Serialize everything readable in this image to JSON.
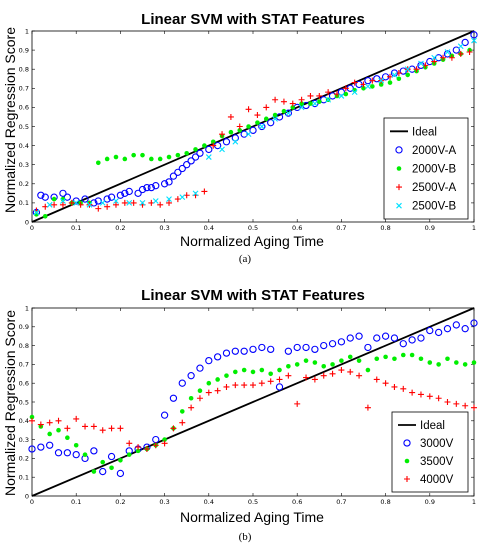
{
  "chart_data": [
    {
      "type": "scatter",
      "title": "Linear SVM with STAT Features",
      "xlabel": "Normalized Aging Time",
      "ylabel": "Normalized Regression Score",
      "caption": "(a)",
      "xlim": [
        0,
        1
      ],
      "ylim": [
        0,
        1
      ],
      "xticks": [
        "0",
        "0.1",
        "0.2",
        "0.3",
        "0.4",
        "0.5",
        "0.6",
        "0.7",
        "0.8",
        "0.9",
        "1"
      ],
      "yticks": [
        "0",
        "0.1",
        "0.2",
        "0.3",
        "0.4",
        "0.5",
        "0.6",
        "0.7",
        "0.8",
        "0.9",
        "1"
      ],
      "legend_position": "bottom-right",
      "ideal": {
        "name": "Ideal",
        "x": [
          0,
          1
        ],
        "y": [
          0,
          1
        ],
        "color": "#000000"
      },
      "series": [
        {
          "name": "2000V-A",
          "marker": "circle",
          "color": "#0000ff",
          "x": [
            0.01,
            0.02,
            0.03,
            0.05,
            0.07,
            0.08,
            0.1,
            0.12,
            0.14,
            0.15,
            0.17,
            0.18,
            0.2,
            0.21,
            0.22,
            0.24,
            0.25,
            0.26,
            0.27,
            0.28,
            0.3,
            0.31,
            0.32,
            0.33,
            0.34,
            0.35,
            0.36,
            0.37,
            0.38,
            0.4,
            0.42,
            0.44,
            0.46,
            0.48,
            0.5,
            0.52,
            0.54,
            0.56,
            0.58,
            0.6,
            0.62,
            0.64,
            0.66,
            0.68,
            0.7,
            0.72,
            0.74,
            0.76,
            0.78,
            0.8,
            0.82,
            0.84,
            0.86,
            0.88,
            0.9,
            0.92,
            0.94,
            0.96,
            0.98,
            1.0
          ],
          "y": [
            0.05,
            0.14,
            0.13,
            0.13,
            0.15,
            0.13,
            0.11,
            0.12,
            0.1,
            0.11,
            0.12,
            0.13,
            0.14,
            0.15,
            0.16,
            0.15,
            0.17,
            0.18,
            0.18,
            0.19,
            0.2,
            0.21,
            0.24,
            0.26,
            0.28,
            0.3,
            0.32,
            0.34,
            0.36,
            0.38,
            0.4,
            0.42,
            0.44,
            0.46,
            0.48,
            0.5,
            0.52,
            0.55,
            0.57,
            0.6,
            0.61,
            0.62,
            0.64,
            0.66,
            0.68,
            0.7,
            0.72,
            0.74,
            0.75,
            0.76,
            0.78,
            0.79,
            0.8,
            0.82,
            0.84,
            0.86,
            0.88,
            0.9,
            0.94,
            0.98
          ]
        },
        {
          "name": "2000V-B",
          "marker": "dot",
          "color": "#00ee00",
          "x": [
            0.01,
            0.03,
            0.05,
            0.07,
            0.09,
            0.11,
            0.13,
            0.15,
            0.17,
            0.19,
            0.21,
            0.23,
            0.25,
            0.27,
            0.29,
            0.31,
            0.33,
            0.35,
            0.37,
            0.39,
            0.41,
            0.43,
            0.45,
            0.47,
            0.49,
            0.51,
            0.53,
            0.55,
            0.57,
            0.59,
            0.61,
            0.63,
            0.65,
            0.67,
            0.69,
            0.71,
            0.73,
            0.75,
            0.77,
            0.79,
            0.81,
            0.83,
            0.85,
            0.87,
            0.89,
            0.91,
            0.93,
            0.95,
            0.97,
            0.99
          ],
          "y": [
            0.04,
            0.03,
            0.12,
            0.12,
            0.1,
            0.1,
            0.1,
            0.31,
            0.33,
            0.34,
            0.33,
            0.35,
            0.35,
            0.33,
            0.33,
            0.34,
            0.35,
            0.36,
            0.38,
            0.4,
            0.42,
            0.45,
            0.47,
            0.48,
            0.5,
            0.52,
            0.54,
            0.56,
            0.58,
            0.6,
            0.62,
            0.62,
            0.63,
            0.64,
            0.66,
            0.67,
            0.69,
            0.7,
            0.71,
            0.72,
            0.73,
            0.75,
            0.77,
            0.79,
            0.81,
            0.83,
            0.85,
            0.87,
            0.88,
            0.9
          ]
        },
        {
          "name": "2500V-A",
          "marker": "plus",
          "color": "#ff0000",
          "x": [
            0.01,
            0.03,
            0.05,
            0.07,
            0.09,
            0.11,
            0.13,
            0.15,
            0.17,
            0.19,
            0.21,
            0.23,
            0.25,
            0.27,
            0.29,
            0.31,
            0.33,
            0.35,
            0.37,
            0.39,
            0.41,
            0.43,
            0.45,
            0.47,
            0.49,
            0.51,
            0.53,
            0.55,
            0.57,
            0.59,
            0.61,
            0.63,
            0.65,
            0.67,
            0.69,
            0.71,
            0.73,
            0.75,
            0.77,
            0.79,
            0.81,
            0.83,
            0.85,
            0.87,
            0.89,
            0.91,
            0.93,
            0.95,
            0.97,
            0.99
          ],
          "y": [
            0.06,
            0.08,
            0.09,
            0.09,
            0.1,
            0.09,
            0.09,
            0.07,
            0.08,
            0.09,
            0.1,
            0.1,
            0.09,
            0.1,
            0.09,
            0.1,
            0.12,
            0.14,
            0.14,
            0.16,
            0.4,
            0.46,
            0.55,
            0.5,
            0.59,
            0.56,
            0.6,
            0.64,
            0.63,
            0.62,
            0.64,
            0.66,
            0.66,
            0.68,
            0.67,
            0.7,
            0.73,
            0.72,
            0.74,
            0.74,
            0.76,
            0.78,
            0.8,
            0.8,
            0.82,
            0.84,
            0.86,
            0.86,
            0.88,
            0.89
          ]
        },
        {
          "name": "2500V-B",
          "marker": "cross",
          "color": "#00e0ff",
          "x": [
            0.01,
            0.04,
            0.07,
            0.1,
            0.13,
            0.16,
            0.19,
            0.22,
            0.25,
            0.28,
            0.31,
            0.34,
            0.37,
            0.4,
            0.43,
            0.46,
            0.49,
            0.52,
            0.55,
            0.58,
            0.61,
            0.64,
            0.67,
            0.7,
            0.73,
            0.76,
            0.79,
            0.82,
            0.85,
            0.88,
            0.91,
            0.94,
            0.97,
            1.0
          ],
          "y": [
            0.05,
            0.09,
            0.11,
            0.1,
            0.09,
            0.1,
            0.11,
            0.1,
            0.1,
            0.11,
            0.12,
            0.13,
            0.15,
            0.34,
            0.38,
            0.42,
            0.46,
            0.5,
            0.54,
            0.57,
            0.6,
            0.62,
            0.64,
            0.66,
            0.68,
            0.71,
            0.74,
            0.77,
            0.8,
            0.83,
            0.86,
            0.89,
            0.92,
            0.95
          ]
        }
      ]
    },
    {
      "type": "scatter",
      "title": "Linear SVM with STAT Features",
      "xlabel": "Normalized Aging Time",
      "ylabel": "Normalized Regression Score",
      "caption": "(b)",
      "xlim": [
        0,
        1
      ],
      "ylim": [
        0,
        1
      ],
      "xticks": [
        "0",
        "0.1",
        "0.2",
        "0.3",
        "0.4",
        "0.5",
        "0.6",
        "0.7",
        "0.8",
        "0.9",
        "1"
      ],
      "yticks": [
        "0",
        "0.1",
        "0.2",
        "0.3",
        "0.4",
        "0.5",
        "0.6",
        "0.7",
        "0.8",
        "0.9",
        "1"
      ],
      "legend_position": "bottom-right",
      "ideal": {
        "name": "Ideal",
        "x": [
          0,
          1
        ],
        "y": [
          0,
          1
        ],
        "color": "#000000"
      },
      "series": [
        {
          "name": "3000V",
          "marker": "circle",
          "color": "#0000ff",
          "x": [
            0.0,
            0.02,
            0.04,
            0.06,
            0.08,
            0.1,
            0.12,
            0.14,
            0.16,
            0.18,
            0.2,
            0.22,
            0.24,
            0.26,
            0.28,
            0.3,
            0.32,
            0.34,
            0.36,
            0.38,
            0.4,
            0.42,
            0.44,
            0.46,
            0.48,
            0.5,
            0.52,
            0.54,
            0.56,
            0.58,
            0.6,
            0.62,
            0.64,
            0.66,
            0.68,
            0.7,
            0.72,
            0.74,
            0.76,
            0.78,
            0.8,
            0.82,
            0.84,
            0.86,
            0.88,
            0.9,
            0.92,
            0.94,
            0.96,
            0.98,
            1.0
          ],
          "y": [
            0.25,
            0.26,
            0.27,
            0.23,
            0.23,
            0.22,
            0.2,
            0.24,
            0.13,
            0.21,
            0.12,
            0.24,
            0.25,
            0.26,
            0.3,
            0.43,
            0.52,
            0.6,
            0.64,
            0.68,
            0.72,
            0.74,
            0.76,
            0.77,
            0.77,
            0.78,
            0.79,
            0.78,
            0.58,
            0.77,
            0.79,
            0.79,
            0.78,
            0.8,
            0.81,
            0.82,
            0.84,
            0.85,
            0.79,
            0.84,
            0.85,
            0.84,
            0.81,
            0.83,
            0.84,
            0.88,
            0.87,
            0.89,
            0.91,
            0.89,
            0.92
          ]
        },
        {
          "name": "3500V",
          "marker": "dot",
          "color": "#00ee00",
          "x": [
            0.0,
            0.02,
            0.04,
            0.06,
            0.08,
            0.1,
            0.12,
            0.14,
            0.16,
            0.18,
            0.2,
            0.22,
            0.24,
            0.26,
            0.28,
            0.3,
            0.32,
            0.34,
            0.36,
            0.38,
            0.4,
            0.42,
            0.44,
            0.46,
            0.48,
            0.5,
            0.52,
            0.54,
            0.56,
            0.58,
            0.6,
            0.62,
            0.64,
            0.66,
            0.68,
            0.7,
            0.72,
            0.74,
            0.76,
            0.78,
            0.8,
            0.82,
            0.84,
            0.86,
            0.88,
            0.9,
            0.92,
            0.94,
            0.96,
            0.98,
            1.0
          ],
          "y": [
            0.42,
            0.37,
            0.33,
            0.35,
            0.31,
            0.27,
            0.22,
            0.13,
            0.18,
            0.15,
            0.19,
            0.22,
            0.24,
            0.25,
            0.27,
            0.3,
            0.36,
            0.45,
            0.52,
            0.56,
            0.6,
            0.62,
            0.64,
            0.66,
            0.67,
            0.66,
            0.67,
            0.65,
            0.67,
            0.69,
            0.7,
            0.72,
            0.71,
            0.69,
            0.7,
            0.72,
            0.74,
            0.72,
            0.67,
            0.73,
            0.74,
            0.73,
            0.75,
            0.75,
            0.73,
            0.71,
            0.7,
            0.73,
            0.71,
            0.7,
            0.71
          ]
        },
        {
          "name": "4000V",
          "marker": "plus",
          "color": "#ff0000",
          "x": [
            0.0,
            0.02,
            0.04,
            0.06,
            0.08,
            0.1,
            0.12,
            0.14,
            0.16,
            0.18,
            0.2,
            0.22,
            0.24,
            0.26,
            0.28,
            0.3,
            0.32,
            0.34,
            0.36,
            0.38,
            0.4,
            0.42,
            0.44,
            0.46,
            0.48,
            0.5,
            0.52,
            0.54,
            0.56,
            0.58,
            0.6,
            0.62,
            0.64,
            0.66,
            0.68,
            0.7,
            0.72,
            0.74,
            0.76,
            0.78,
            0.8,
            0.82,
            0.84,
            0.86,
            0.88,
            0.9,
            0.92,
            0.94,
            0.96,
            0.98,
            1.0
          ],
          "y": [
            0.4,
            0.38,
            0.39,
            0.4,
            0.36,
            0.41,
            0.37,
            0.37,
            0.35,
            0.36,
            0.36,
            0.28,
            0.26,
            0.25,
            0.27,
            0.28,
            0.36,
            0.39,
            0.47,
            0.52,
            0.55,
            0.56,
            0.58,
            0.59,
            0.59,
            0.59,
            0.6,
            0.61,
            0.62,
            0.64,
            0.49,
            0.63,
            0.62,
            0.64,
            0.65,
            0.67,
            0.66,
            0.64,
            0.47,
            0.62,
            0.6,
            0.58,
            0.57,
            0.55,
            0.54,
            0.53,
            0.52,
            0.5,
            0.49,
            0.48,
            0.47
          ]
        }
      ]
    }
  ]
}
